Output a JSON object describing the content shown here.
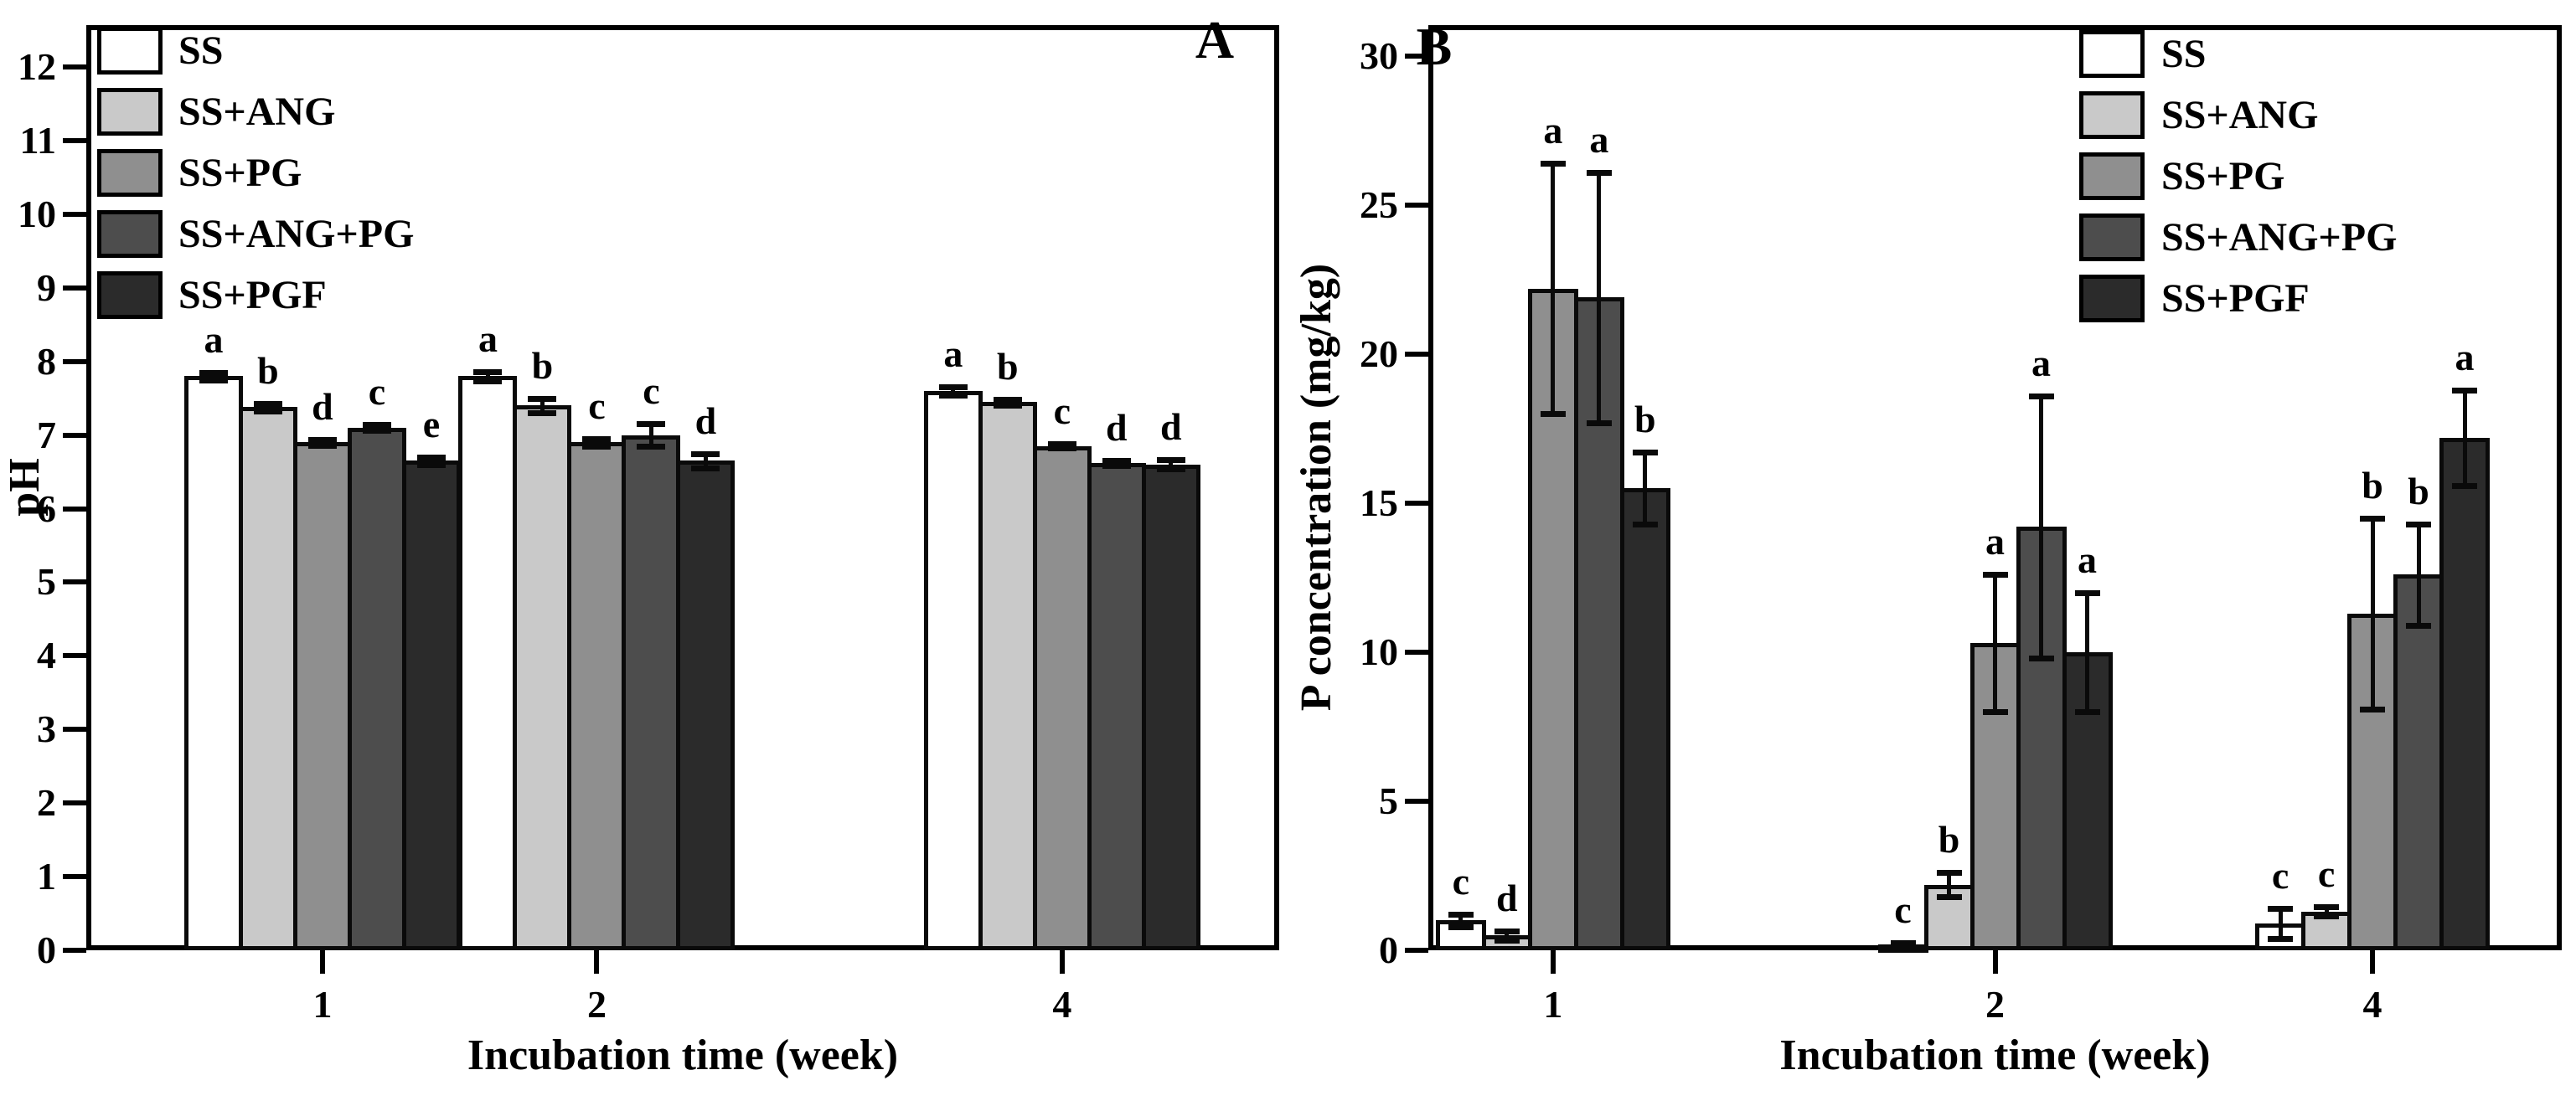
{
  "figure": {
    "background": "#ffffff",
    "axis_color": "#000000",
    "panel_a_corner_label": "A",
    "panel_b_corner_label": "B"
  },
  "chart_data": [
    {
      "type": "bar",
      "panel_label": "A",
      "xlabel": "Incubation time (week)",
      "ylabel": "pH",
      "ylim": [
        0,
        12
      ],
      "yticks": [
        0,
        1,
        2,
        3,
        4,
        5,
        6,
        7,
        8,
        9,
        10,
        11,
        12
      ],
      "categories": [
        "1",
        "2",
        "4"
      ],
      "grid": false,
      "legend_position": "top-left",
      "error_bars": true,
      "series": [
        {
          "name": "SS",
          "color": "#ffffff",
          "values": [
            7.8,
            7.8,
            7.6
          ],
          "errors": [
            0.05,
            0.06,
            0.06
          ],
          "sig_letters": [
            "a",
            "a",
            "a"
          ]
        },
        {
          "name": "SS+ANG",
          "color": "#c9c9c9",
          "values": [
            7.38,
            7.4,
            7.45
          ],
          "errors": [
            0.05,
            0.1,
            0.04
          ],
          "sig_letters": [
            "b",
            "b",
            "b"
          ]
        },
        {
          "name": "SS+PG",
          "color": "#8f8f8f",
          "values": [
            6.9,
            6.9,
            6.85
          ],
          "errors": [
            0.04,
            0.05,
            0.03
          ],
          "sig_letters": [
            "d",
            "c",
            "c"
          ]
        },
        {
          "name": "SS+ANG+PG",
          "color": "#4d4d4d",
          "values": [
            7.1,
            7.0,
            6.62
          ],
          "errors": [
            0.04,
            0.15,
            0.03
          ],
          "sig_letters": [
            "c",
            "c",
            "d"
          ]
        },
        {
          "name": "SS+PGF",
          "color": "#2b2b2b",
          "values": [
            6.65,
            6.65,
            6.6
          ],
          "errors": [
            0.05,
            0.1,
            0.06
          ],
          "sig_letters": [
            "e",
            "d",
            "d"
          ]
        }
      ]
    },
    {
      "type": "bar",
      "panel_label": "B",
      "xlabel": "Incubation time (week)",
      "ylabel": "P concentration (mg/kg)",
      "ylim": [
        0,
        30
      ],
      "yticks": [
        0,
        5,
        10,
        15,
        20,
        25,
        30
      ],
      "categories": [
        "1",
        "2",
        "4"
      ],
      "grid": false,
      "legend_position": "top-right",
      "error_bars": true,
      "series": [
        {
          "name": "SS",
          "color": "#ffffff",
          "values": [
            1.0,
            0.2,
            0.9
          ],
          "errors": [
            0.2,
            0.05,
            0.5
          ],
          "sig_letters": [
            "c",
            "c",
            "c"
          ]
        },
        {
          "name": "SS+ANG",
          "color": "#c9c9c9",
          "values": [
            0.5,
            2.2,
            1.3
          ],
          "errors": [
            0.15,
            0.4,
            0.15
          ],
          "sig_letters": [
            "d",
            "b",
            "c"
          ]
        },
        {
          "name": "SS+PG",
          "color": "#8f8f8f",
          "values": [
            22.2,
            10.3,
            11.3
          ],
          "errors": [
            4.2,
            2.3,
            3.2
          ],
          "sig_letters": [
            "a",
            "a",
            "b"
          ]
        },
        {
          "name": "SS+ANG+PG",
          "color": "#4d4d4d",
          "values": [
            21.9,
            14.2,
            12.6
          ],
          "errors": [
            4.2,
            4.4,
            1.7
          ],
          "sig_letters": [
            "a",
            "a",
            "b"
          ]
        },
        {
          "name": "SS+PGF",
          "color": "#2b2b2b",
          "values": [
            15.5,
            10.0,
            17.2
          ],
          "errors": [
            1.2,
            2.0,
            1.6
          ],
          "sig_letters": [
            "b",
            "a",
            "a"
          ]
        }
      ]
    }
  ]
}
